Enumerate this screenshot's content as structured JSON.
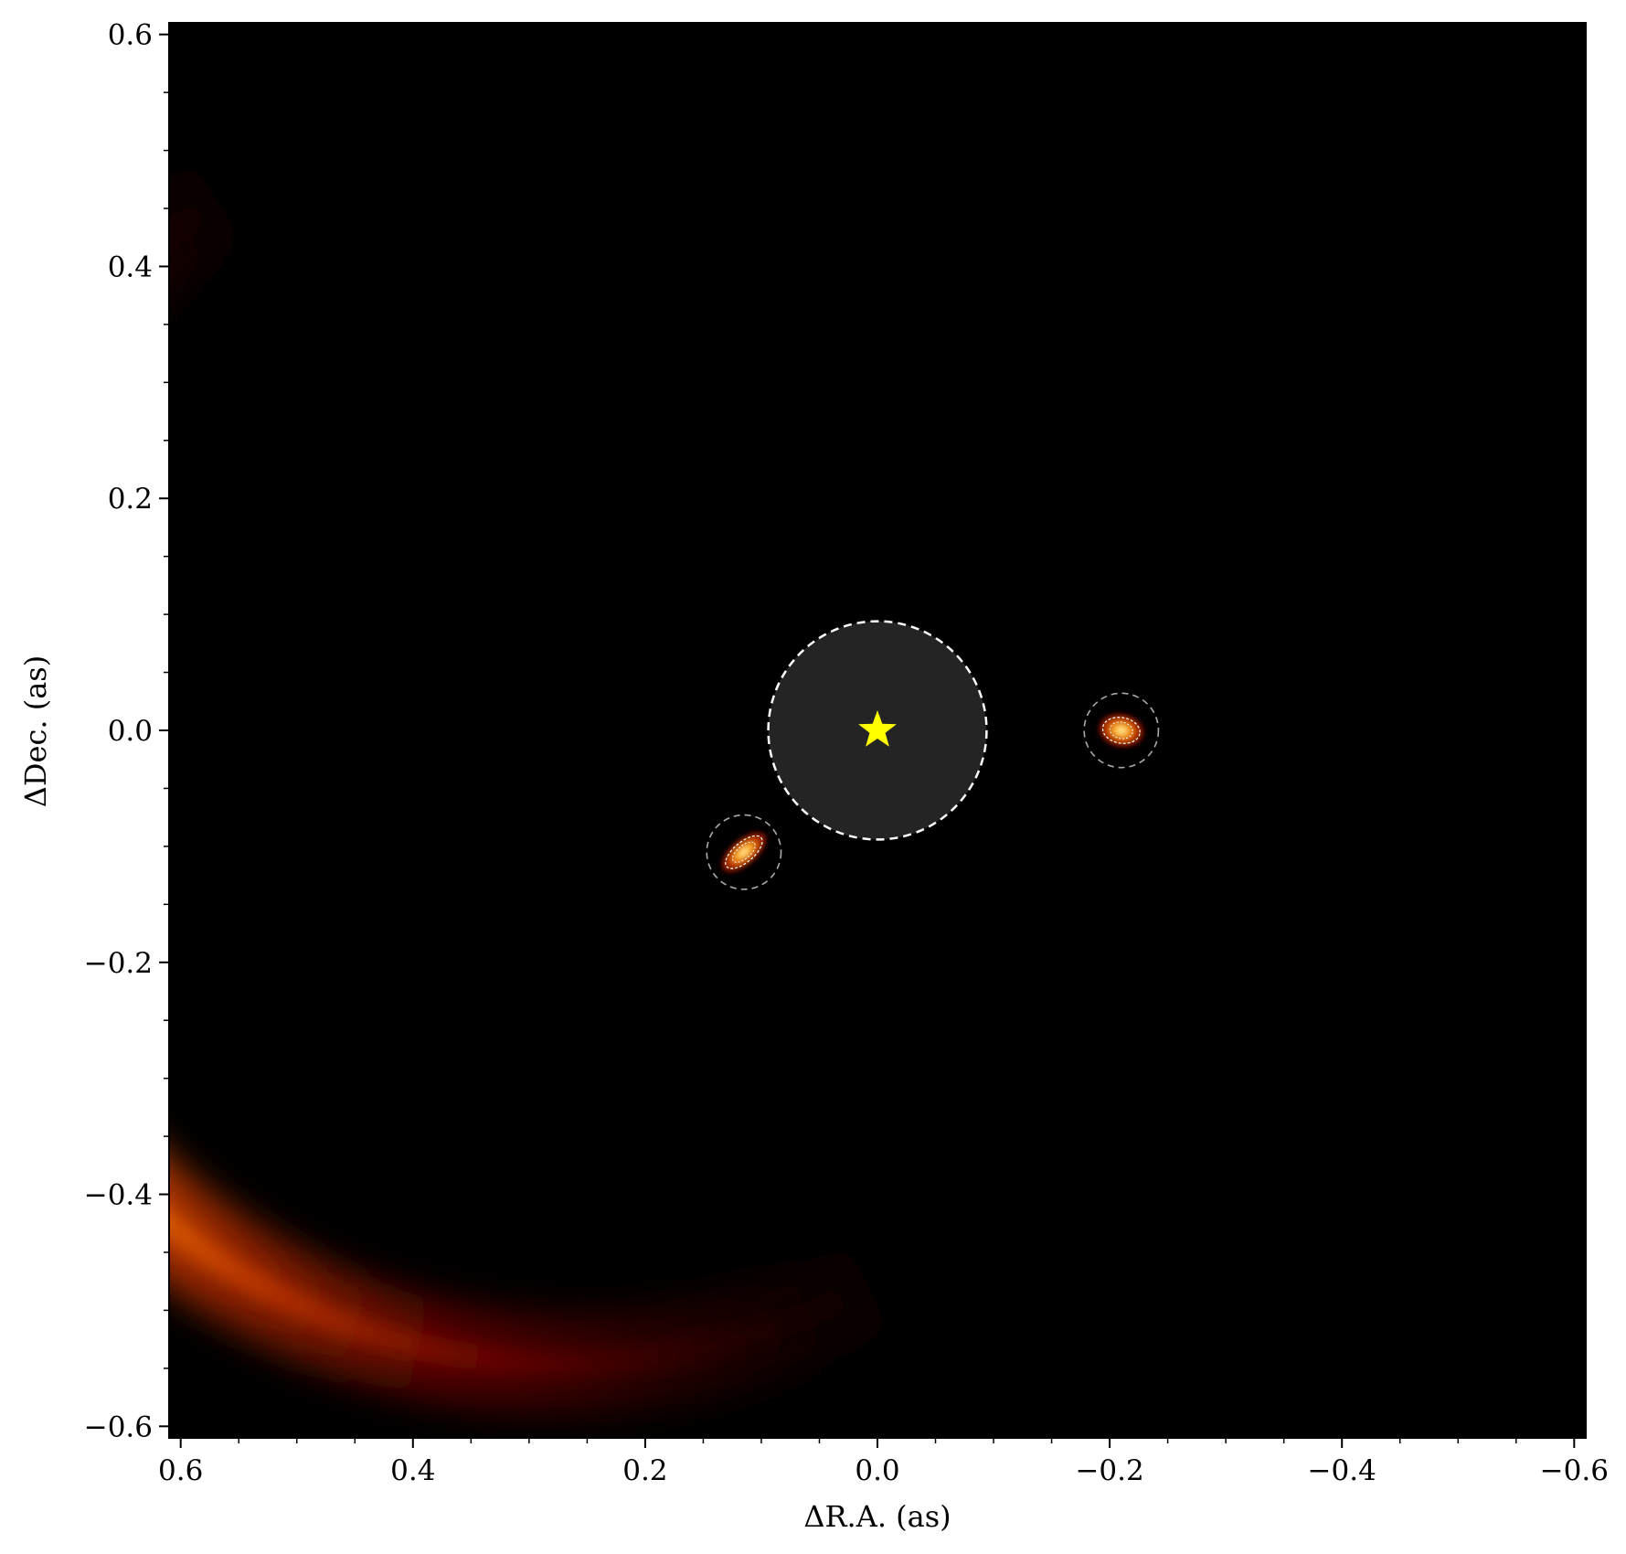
{
  "chart_data": {
    "type": "heatmap",
    "title": "",
    "xlabel": "ΔR.A. (as)",
    "ylabel": "ΔDec. (as)",
    "xlim": [
      0.61,
      -0.61
    ],
    "ylim": [
      -0.61,
      0.61
    ],
    "x_axis_inverted": true,
    "xticks": [
      0.6,
      0.4,
      0.2,
      0.0,
      -0.2,
      -0.4,
      -0.6
    ],
    "xtick_labels": [
      "0.6",
      "0.4",
      "0.2",
      "0.0",
      "−0.2",
      "−0.4",
      "−0.6"
    ],
    "yticks": [
      0.6,
      0.4,
      0.2,
      0.0,
      -0.2,
      -0.4,
      -0.6
    ],
    "ytick_labels": [
      "0.6",
      "0.4",
      "0.2",
      "0.0",
      "−0.2",
      "−0.4",
      "−0.6"
    ],
    "minor_tick_step": 0.05,
    "grid": false,
    "colormap": "afmhot",
    "background_color": "#000000",
    "star": {
      "x": 0.0,
      "y": 0.0,
      "color": "#ffff00",
      "marker": "star"
    },
    "coronagraph_mask": {
      "x": 0.0,
      "y": 0.0,
      "radius": 0.094,
      "fill": "#242424",
      "edge": "#ffffff",
      "style": "dashed"
    },
    "disk_arc": {
      "center_x": 0.27,
      "center_y": 0.0,
      "radius": 0.545,
      "width": 0.05,
      "angle_range_deg": [
        -128,
        62
      ],
      "peak_angle_deg": -13
    },
    "sources": [
      {
        "x": -0.21,
        "y": 0.0,
        "aperture_radius": 0.032
      },
      {
        "x": 0.115,
        "y": -0.105,
        "aperture_radius": 0.032
      }
    ]
  }
}
